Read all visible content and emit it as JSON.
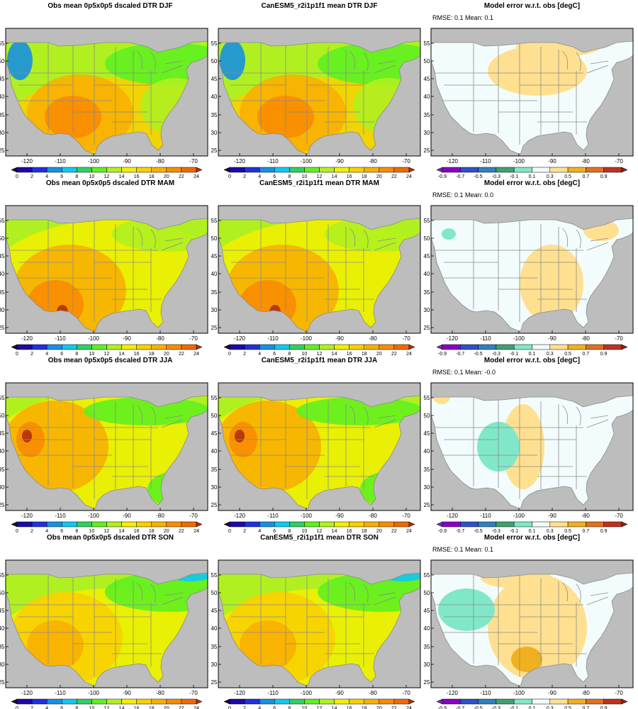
{
  "figure": {
    "rows": [
      {
        "season": "DJF",
        "panels": [
          {
            "kind": "obs",
            "title": "Obs mean 0p5x0p5 dscaled DTR DJF"
          },
          {
            "kind": "model",
            "title": "CanESM5_r2i1p1f1 mean DTR DJF"
          },
          {
            "kind": "error",
            "title": "Model error w.r.t. obs [degC]",
            "stats": "RMSE: 0.1   Mean: 0.1"
          }
        ]
      },
      {
        "season": "MAM",
        "panels": [
          {
            "kind": "obs",
            "title": "Obs mean 0p5x0p5 dscaled DTR MAM"
          },
          {
            "kind": "model",
            "title": "CanESM5_r2i1p1f1 mean DTR MAM"
          },
          {
            "kind": "error",
            "title": "Model error w.r.t. obs [degC]",
            "stats": "RMSE: 0.1   Mean: 0.0"
          }
        ]
      },
      {
        "season": "JJA",
        "panels": [
          {
            "kind": "obs",
            "title": "Obs mean 0p5x0p5 dscaled DTR JJA"
          },
          {
            "kind": "model",
            "title": "CanESM5_r2i1p1f1 mean DTR JJA"
          },
          {
            "kind": "error",
            "title": "Model error w.r.t. obs [degC]",
            "stats": "RMSE: 0.1   Mean: -0.0"
          }
        ]
      },
      {
        "season": "SON",
        "panels": [
          {
            "kind": "obs",
            "title": "Obs mean 0p5x0p5 dscaled DTR SON"
          },
          {
            "kind": "model",
            "title": "CanESM5_r2i1p1f1 mean DTR SON"
          },
          {
            "kind": "error",
            "title": "Model error w.r.t. obs [degC]",
            "stats": "RMSE: 0.1   Mean: 0.1"
          }
        ]
      }
    ],
    "lon_ticks": [
      "-120",
      "-110",
      "-100",
      "-90",
      "-80",
      "-70"
    ],
    "lat_ticks": [
      "25",
      "30",
      "35",
      "40",
      "45",
      "50",
      "55"
    ],
    "dtr_colorbar": {
      "labels": [
        "0",
        "2",
        "4",
        "6",
        "8",
        "10",
        "12",
        "14",
        "16",
        "18",
        "20",
        "22",
        "24"
      ],
      "colors": [
        "#2a0036",
        "#1c0aa8",
        "#2030e0",
        "#1890e0",
        "#10c8f0",
        "#30d060",
        "#60f020",
        "#b0f020",
        "#f0f000",
        "#f8d000",
        "#f8b000",
        "#f88c00",
        "#f06a00",
        "#b03010"
      ]
    },
    "error_colorbar": {
      "labels": [
        "-0.9",
        "-0.7",
        "-0.5",
        "-0.3",
        "-0.1",
        "0.1",
        "0.3",
        "0.5",
        "0.7",
        "0.9"
      ],
      "colors": [
        "#7030a0",
        "#8a00c8",
        "#3050c8",
        "#3080c0",
        "#40a070",
        "#80e8c8",
        "#f0fcfc",
        "#ffe090",
        "#f0b020",
        "#e07020",
        "#c03020",
        "#7a2c10"
      ]
    },
    "colors": {
      "ocean": "#bdbdbd",
      "state_lines": "#8a8a8a",
      "error_background": "#f2fcfc"
    }
  }
}
